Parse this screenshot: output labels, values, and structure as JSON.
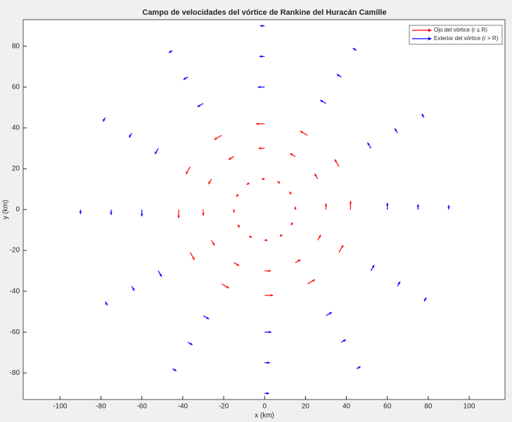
{
  "chart_data": {
    "type": "quiver",
    "title": "Campo de velocidades del vórtice de Rankine del Huracán Camille",
    "x_label": "x (km)",
    "y_label": "y (km)",
    "xlim": [
      -118,
      117.5
    ],
    "ylim": [
      -93,
      93
    ],
    "xticks": [
      -100,
      -80,
      -60,
      -40,
      -20,
      0,
      20,
      40,
      60,
      80,
      100
    ],
    "yticks": [
      -80,
      -60,
      -40,
      -20,
      0,
      20,
      40,
      60,
      80
    ],
    "grid": false,
    "legend": "upper right",
    "series": [
      {
        "name": "Ojo del vórtice (r ≤ R)",
        "color": "#ff0000",
        "x": [
          15,
          12.99,
          7.5,
          0,
          -7.5,
          -12.99,
          -15,
          -12.99,
          -7.5,
          0,
          7.5,
          12.99,
          30,
          25.98,
          15,
          0,
          -15,
          -25.98,
          -30,
          -25.98,
          -15,
          0,
          15,
          25.98,
          42,
          36.37,
          21,
          0,
          -21,
          -36.37,
          -42,
          -36.37,
          -21,
          0,
          21,
          36.37
        ],
        "y": [
          0,
          7.5,
          12.99,
          15,
          12.99,
          7.5,
          0,
          -7.5,
          -12.99,
          -15,
          -12.99,
          -7.5,
          0,
          15,
          25.98,
          30,
          25.98,
          15,
          0,
          -15,
          -25.98,
          -30,
          -25.98,
          -15,
          0,
          21,
          36.37,
          42,
          36.37,
          21,
          0,
          -21,
          -36.37,
          -42,
          -36.37,
          -21
        ],
        "u": [
          0,
          -0.75,
          -1.3,
          -1.5,
          -1.3,
          -0.75,
          0,
          0.75,
          1.3,
          1.5,
          1.3,
          0.75,
          0,
          -1.5,
          -2.6,
          -3,
          -2.6,
          -1.5,
          0,
          1.5,
          2.6,
          3,
          2.6,
          1.5,
          0,
          -2.1,
          -3.64,
          -4.2,
          -3.64,
          -2.1,
          0,
          2.1,
          3.64,
          4.2,
          3.64,
          2.1
        ],
        "v": [
          1.5,
          1.3,
          0.75,
          0,
          -0.75,
          -1.3,
          -1.5,
          -1.3,
          -0.75,
          0,
          0.75,
          1.3,
          3,
          2.6,
          1.5,
          0,
          -1.5,
          -2.6,
          -3,
          -2.6,
          -1.5,
          0,
          1.5,
          2.6,
          4.2,
          3.64,
          2.1,
          0,
          -2.1,
          -3.64,
          -4.2,
          -3.64,
          -2.1,
          0,
          2.1,
          3.64
        ]
      },
      {
        "name": "Exterior del vórtice (r > R)",
        "color": "#0000ff",
        "x": [
          60,
          51.96,
          30,
          0,
          -30,
          -51.96,
          -60,
          -51.96,
          -30,
          0,
          30,
          51.96,
          75,
          64.95,
          37.5,
          0,
          -37.5,
          -64.95,
          -75,
          -64.95,
          -37.5,
          0,
          37.5,
          64.95,
          90,
          77.94,
          45,
          0,
          -45,
          -77.94,
          -90,
          -77.94,
          -45,
          0,
          45,
          77.94
        ],
        "y": [
          0,
          30,
          51.96,
          60,
          51.96,
          30,
          0,
          -30,
          -51.96,
          -60,
          -51.96,
          -30,
          0,
          37.5,
          64.95,
          75,
          64.95,
          37.5,
          0,
          -37.5,
          -64.95,
          -75,
          -64.95,
          -37.5,
          0,
          45,
          77.94,
          90,
          77.94,
          45,
          0,
          -45,
          -77.94,
          -90,
          -77.94,
          -45
        ],
        "u": [
          0,
          -1.65,
          -2.86,
          -3.3,
          -2.86,
          -1.65,
          0,
          1.65,
          2.86,
          3.3,
          2.86,
          1.65,
          0,
          -1.3,
          -2.25,
          -2.6,
          -2.25,
          -1.3,
          0,
          1.3,
          2.25,
          2.6,
          2.25,
          1.3,
          0,
          -1.1,
          -1.91,
          -2.2,
          -1.91,
          -1.1,
          0,
          1.1,
          1.91,
          2.2,
          1.91,
          1.1
        ],
        "v": [
          3.3,
          2.86,
          1.65,
          0,
          -1.65,
          -2.86,
          -3.3,
          -2.86,
          -1.65,
          0,
          1.65,
          2.86,
          2.6,
          2.25,
          1.3,
          0,
          -1.3,
          -2.25,
          -2.6,
          -2.25,
          -1.3,
          0,
          1.3,
          2.25,
          2.2,
          1.91,
          1.1,
          0,
          -1.1,
          -1.91,
          -2.2,
          -1.91,
          -1.1,
          0,
          1.1,
          1.91
        ]
      }
    ]
  }
}
